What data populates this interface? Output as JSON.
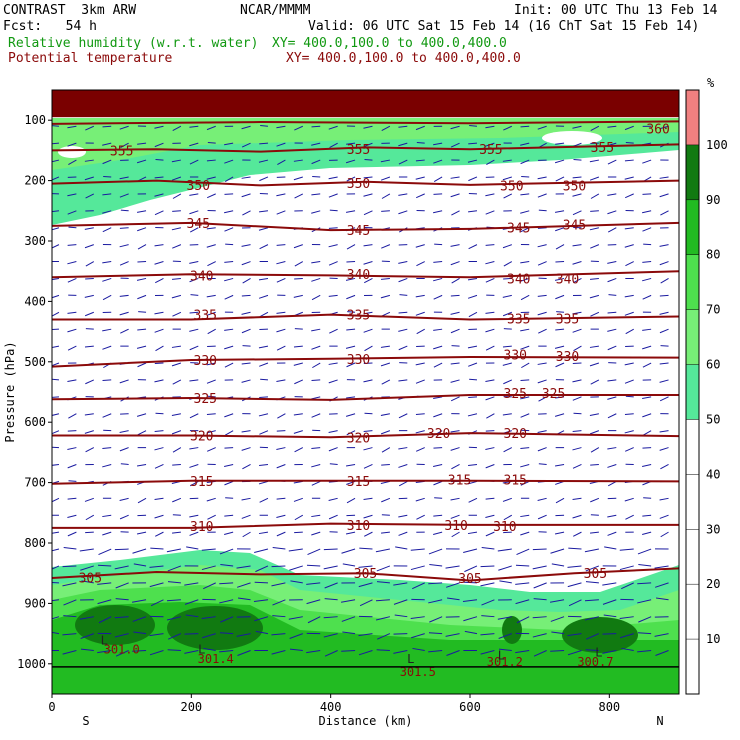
{
  "header": {
    "model_name": "CONTRAST  3km ARW",
    "forecast": "Fcst:   54 h",
    "center": "NCAR/MMMM",
    "init": "Init: 00 UTC Thu 13 Feb 14",
    "valid": "Valid: 06 UTC Sat 15 Feb 14 (16 ChT Sat 15 Feb 14)",
    "field1_name": "Relative humidity (w.r.t. water)",
    "field1_xy": "XY= 400.0,100.0 to 400.0,400.0",
    "field2_name": "Potential temperature",
    "field2_xy": "XY= 400.0,100.0 to 400.0,400.0"
  },
  "colors": {
    "theta": "#8b0a0a",
    "wind": "#1a1aa0",
    "rh_label": "#119911",
    "top_band": "#7a0000"
  },
  "chart_data": {
    "type": "cross-section",
    "xlabel": "Distance (km)",
    "ylabel": "Pressure (hPa)",
    "xlim": [
      0,
      900
    ],
    "ylim": [
      1050,
      50
    ],
    "x_ticks": [
      0,
      200,
      400,
      600,
      800
    ],
    "y_ticks": [
      100,
      200,
      300,
      400,
      500,
      600,
      700,
      800,
      900,
      1000
    ],
    "x_end_labels": {
      "left": "S",
      "right": "N"
    },
    "colorbar": {
      "unit": "%",
      "levels": [
        10,
        20,
        30,
        40,
        50,
        60,
        70,
        80,
        90,
        100
      ],
      "bands": [
        {
          "from": 0,
          "to": 50,
          "color": "#ffffff"
        },
        {
          "from": 50,
          "to": 60,
          "color": "#55e89a"
        },
        {
          "from": 60,
          "to": 70,
          "color": "#77ef77"
        },
        {
          "from": 70,
          "to": 80,
          "color": "#4ee04e"
        },
        {
          "from": 80,
          "to": 90,
          "color": "#22bb22"
        },
        {
          "from": 90,
          "to": 100,
          "color": "#117a11"
        },
        {
          "from": 100,
          "to": 110,
          "color": "#f08080"
        }
      ]
    },
    "theta_contours": [
      {
        "value": 360,
        "points": [
          [
            0,
            106
          ],
          [
            300,
            103
          ],
          [
            600,
            105
          ],
          [
            900,
            102
          ]
        ],
        "labels": [
          [
            870,
            114
          ]
        ]
      },
      {
        "value": 355,
        "points": [
          [
            0,
            150
          ],
          [
            150,
            148
          ],
          [
            300,
            152
          ],
          [
            450,
            145
          ],
          [
            600,
            148
          ],
          [
            900,
            140
          ]
        ],
        "labels": [
          [
            100,
            150
          ],
          [
            440,
            148
          ],
          [
            630,
            148
          ],
          [
            790,
            144
          ]
        ]
      },
      {
        "value": 350,
        "points": [
          [
            0,
            205
          ],
          [
            150,
            200
          ],
          [
            300,
            208
          ],
          [
            450,
            202
          ],
          [
            600,
            207
          ],
          [
            900,
            200
          ]
        ],
        "labels": [
          [
            210,
            207
          ],
          [
            440,
            204
          ],
          [
            660,
            208
          ],
          [
            750,
            208
          ]
        ]
      },
      {
        "value": 345,
        "points": [
          [
            0,
            275
          ],
          [
            200,
            270
          ],
          [
            400,
            282
          ],
          [
            600,
            280
          ],
          [
            900,
            270
          ]
        ],
        "labels": [
          [
            210,
            270
          ],
          [
            440,
            282
          ],
          [
            670,
            278
          ],
          [
            750,
            273
          ]
        ]
      },
      {
        "value": 340,
        "points": [
          [
            0,
            360
          ],
          [
            200,
            355
          ],
          [
            400,
            357
          ],
          [
            600,
            360
          ],
          [
            900,
            350
          ]
        ],
        "labels": [
          [
            215,
            357
          ],
          [
            440,
            355
          ],
          [
            670,
            362
          ],
          [
            740,
            362
          ]
        ]
      },
      {
        "value": 335,
        "points": [
          [
            0,
            430
          ],
          [
            200,
            430
          ],
          [
            400,
            422
          ],
          [
            600,
            430
          ],
          [
            900,
            425
          ]
        ],
        "labels": [
          [
            220,
            422
          ],
          [
            440,
            422
          ],
          [
            670,
            428
          ],
          [
            740,
            428
          ]
        ]
      },
      {
        "value": 330,
        "points": [
          [
            0,
            508
          ],
          [
            200,
            497
          ],
          [
            400,
            495
          ],
          [
            600,
            492
          ],
          [
            900,
            493
          ]
        ],
        "labels": [
          [
            220,
            497
          ],
          [
            440,
            495
          ],
          [
            665,
            488
          ],
          [
            740,
            490
          ]
        ]
      },
      {
        "value": 325,
        "points": [
          [
            0,
            562
          ],
          [
            200,
            560
          ],
          [
            400,
            563
          ],
          [
            600,
            555
          ],
          [
            900,
            555
          ]
        ],
        "labels": [
          [
            220,
            560
          ],
          [
            665,
            552
          ],
          [
            720,
            552
          ]
        ]
      },
      {
        "value": 320,
        "points": [
          [
            0,
            622
          ],
          [
            200,
            622
          ],
          [
            400,
            625
          ],
          [
            600,
            618
          ],
          [
            900,
            623
          ]
        ],
        "labels": [
          [
            215,
            622
          ],
          [
            440,
            625
          ],
          [
            555,
            618
          ],
          [
            665,
            618
          ]
        ]
      },
      {
        "value": 315,
        "points": [
          [
            0,
            702
          ],
          [
            200,
            697
          ],
          [
            400,
            697
          ],
          [
            600,
            697
          ],
          [
            900,
            698
          ]
        ],
        "labels": [
          [
            215,
            697
          ],
          [
            440,
            697
          ],
          [
            585,
            695
          ],
          [
            665,
            695
          ]
        ]
      },
      {
        "value": 310,
        "points": [
          [
            0,
            775
          ],
          [
            200,
            775
          ],
          [
            400,
            768
          ],
          [
            600,
            770
          ],
          [
            900,
            770
          ]
        ],
        "labels": [
          [
            215,
            772
          ],
          [
            440,
            770
          ],
          [
            580,
            770
          ],
          [
            650,
            772
          ]
        ]
      },
      {
        "value": 305,
        "points": [
          [
            0,
            858
          ],
          [
            150,
            848
          ],
          [
            300,
            852
          ],
          [
            450,
            850
          ],
          [
            600,
            862
          ],
          [
            750,
            850
          ],
          [
            900,
            842
          ]
        ],
        "labels": [
          [
            55,
            857
          ],
          [
            450,
            850
          ],
          [
            600,
            858
          ],
          [
            780,
            850
          ]
        ]
      }
    ],
    "surface_labels": [
      {
        "text": "301.0",
        "x": 100,
        "p": 975
      },
      {
        "text": "301.4",
        "x": 235,
        "p": 990
      },
      {
        "text": "301.5",
        "x": 525,
        "p": 1012
      },
      {
        "text": "301.2",
        "x": 650,
        "p": 995
      },
      {
        "text": "300.7",
        "x": 780,
        "p": 995
      }
    ],
    "low_markers": [
      {
        "text": "L",
        "x": 75,
        "p": 960
      },
      {
        "text": "L",
        "x": 215,
        "p": 975
      },
      {
        "text": "L",
        "x": 515,
        "p": 990
      },
      {
        "text": "L",
        "x": 645,
        "p": 985
      },
      {
        "text": "L",
        "x": 785,
        "p": 980
      }
    ]
  }
}
